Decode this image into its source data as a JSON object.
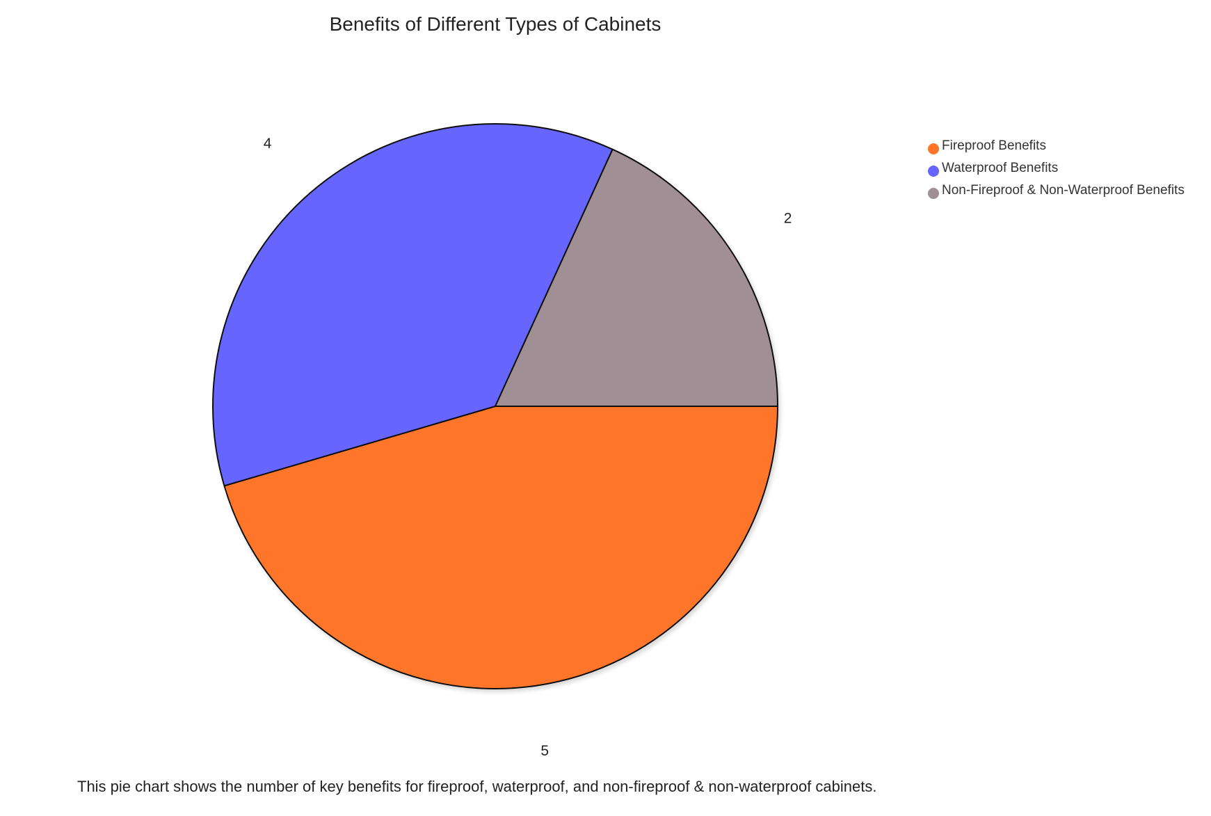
{
  "chart_data": {
    "type": "pie",
    "title": "Benefits of Different Types of Cabinets",
    "categories": [
      "Fireproof Benefits",
      "Waterproof Benefits",
      "Non-Fireproof & Non-Waterproof Benefits"
    ],
    "values": [
      5,
      4,
      2
    ],
    "colors": [
      "#ff7629",
      "#6666ff",
      "#a08f94"
    ],
    "legend_position": "top-right",
    "start_angle_deg": 0,
    "direction": "clockwise"
  },
  "caption": "This pie chart shows the number of key benefits for fireproof, waterproof, and non-fireproof & non-waterproof cabinets."
}
